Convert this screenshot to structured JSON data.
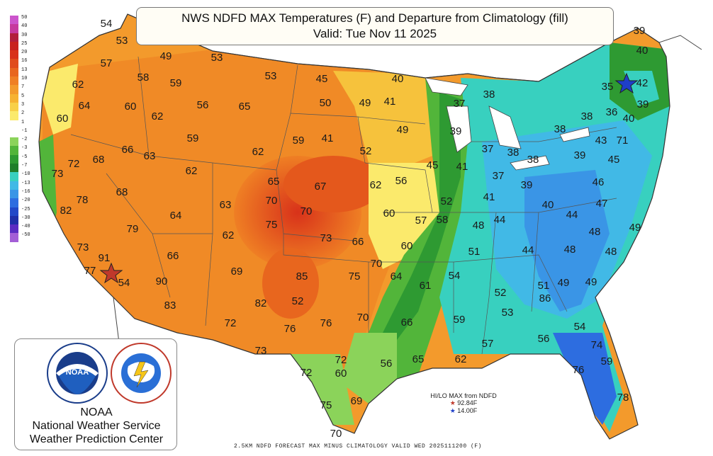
{
  "title": {
    "line1": "NWS NDFD MAX Temperatures (F) and Departure from Climatology (fill)",
    "line2": "Valid: Tue Nov 11 2025"
  },
  "legend": {
    "values": [
      "50",
      "40",
      "30",
      "25",
      "20",
      "16",
      "13",
      "10",
      "7",
      "5",
      "3",
      "2",
      "1",
      "-1",
      "-2",
      "-3",
      "-5",
      "-7",
      "-10",
      "-13",
      "-16",
      "-20",
      "-25",
      "-30",
      "-40",
      "-50"
    ],
    "colors": [
      "#cc55cc",
      "#c63a9e",
      "#b21f3c",
      "#c8221e",
      "#d8321a",
      "#e04c1c",
      "#e8661e",
      "#ef7f24",
      "#f39a2c",
      "#f6b232",
      "#f8d048",
      "#fbea6c",
      "#ffffff",
      "#ffffff",
      "#8bd35a",
      "#52b53a",
      "#2e9a32",
      "#1f7e2a",
      "#38d0bf",
      "#41b9e6",
      "#3a95e6",
      "#2d6de0",
      "#2148c8",
      "#1e2fa8",
      "#5a2cc2",
      "#a35ed6"
    ]
  },
  "temperatures": [
    "54",
    "53",
    "57",
    "49",
    "53",
    "62",
    "58",
    "59",
    "64",
    "60",
    "53",
    "45",
    "40",
    "60",
    "56",
    "65",
    "62",
    "50",
    "49",
    "41",
    "38",
    "37",
    "39",
    "40",
    "35",
    "42",
    "39",
    "36",
    "40",
    "38",
    "38",
    "49",
    "59",
    "62",
    "59",
    "41",
    "39",
    "37",
    "38",
    "38",
    "39",
    "43",
    "71",
    "73",
    "72",
    "68",
    "66",
    "63",
    "62",
    "52",
    "45",
    "41",
    "37",
    "39",
    "45",
    "65",
    "67",
    "62",
    "56",
    "78",
    "68",
    "46",
    "82",
    "64",
    "63",
    "70",
    "70",
    "52",
    "41",
    "40",
    "44",
    "47",
    "79",
    "75",
    "60",
    "57",
    "58",
    "48",
    "44",
    "49",
    "62",
    "73",
    "66",
    "60",
    "48",
    "73",
    "91",
    "66",
    "51",
    "44",
    "48",
    "48",
    "77",
    "69",
    "70",
    "64",
    "54",
    "54",
    "90",
    "85",
    "75",
    "49",
    "61",
    "52",
    "51",
    "49",
    "86",
    "83",
    "82",
    "52",
    "53",
    "72",
    "76",
    "76",
    "70",
    "66",
    "59",
    "54",
    "57",
    "56",
    "73",
    "65",
    "62",
    "74",
    "72",
    "72",
    "56",
    "60",
    "59",
    "76",
    "75",
    "69",
    "78",
    "70"
  ],
  "hilo": {
    "title": "HI/LO MAX from NDFD",
    "hi": "92.84F",
    "lo": "14.00F",
    "hi_color": "#c0392b",
    "lo_color": "#1e3fc8"
  },
  "logo": {
    "org": "NOAA",
    "line1": "National Weather Service",
    "line2": "Weather Prediction Center",
    "noaa_ring": "NATIONAL OCEANIC AND ATMOSPHERIC ADMINISTRATION",
    "nws_ring": "NATIONAL WEATHER SERVICE"
  },
  "footer": "2.5KM NDFD FORECAST MAX MINUS CLIMATOLOGY VALID WED 2025111200 (F)"
}
